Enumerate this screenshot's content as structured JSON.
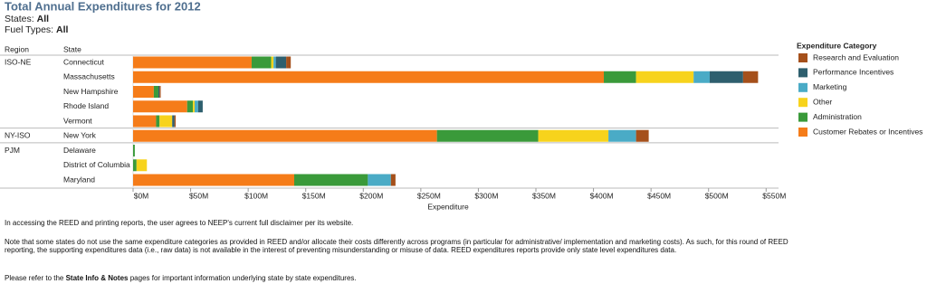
{
  "chart_data": {
    "type": "stacked-bar-horizontal",
    "title": "Total Annual Expenditures for 2012",
    "filters": [
      {
        "label": "States: ",
        "value": "All"
      },
      {
        "label": "Fuel Types: ",
        "value": "All"
      }
    ],
    "region_header": "Region",
    "state_header": "State",
    "regions": [
      "ISO-NE",
      null,
      null,
      null,
      null,
      "NY-ISO",
      "PJM",
      null,
      null
    ],
    "categories": [
      "Connecticut",
      "Massachusetts",
      "New Hampshire",
      "Rhode Island",
      "Vermont",
      "New York",
      "Delaware",
      "District of Columbia",
      "Maryland"
    ],
    "xlabel": "Expenditure",
    "xlim": [
      0,
      560
    ],
    "xticks": [
      {
        "value": 0,
        "label": "$0M"
      },
      {
        "value": 50,
        "label": "$50M"
      },
      {
        "value": 100,
        "label": "$100M"
      },
      {
        "value": 150,
        "label": "$150M"
      },
      {
        "value": 200,
        "label": "$200M"
      },
      {
        "value": 250,
        "label": "$250M"
      },
      {
        "value": 300,
        "label": "$300M"
      },
      {
        "value": 350,
        "label": "$350M"
      },
      {
        "value": 400,
        "label": "$400M"
      },
      {
        "value": 450,
        "label": "$450M"
      },
      {
        "value": 500,
        "label": "$500M"
      },
      {
        "value": 550,
        "label": "$550M"
      }
    ],
    "legend_title": "Expenditure Category",
    "series": [
      {
        "name": "Customer Rebates or Incentives",
        "color": "#f57c19",
        "values": [
          103,
          409,
          18,
          47,
          20,
          264,
          null,
          null,
          140
        ]
      },
      {
        "name": "Administration",
        "color": "#3a9a3a",
        "values": [
          17,
          28,
          4,
          5,
          3,
          88,
          1.5,
          3,
          64
        ]
      },
      {
        "name": "Other",
        "color": "#f7d31c",
        "values": [
          2,
          50,
          null,
          1.5,
          11,
          61,
          null,
          9,
          null
        ]
      },
      {
        "name": "Marketing",
        "color": "#4aabc6",
        "values": [
          2,
          14,
          null,
          3,
          null,
          24,
          null,
          null,
          20
        ]
      },
      {
        "name": "Performance Incentives",
        "color": "#2e5f6e",
        "values": [
          9,
          29,
          1,
          4,
          2,
          null,
          null,
          null,
          null
        ]
      },
      {
        "name": "Research and Evaluation",
        "color": "#a5501b",
        "values": [
          4,
          13,
          1,
          null,
          1,
          11,
          null,
          null,
          4
        ]
      }
    ]
  },
  "notes": {
    "disclaimer": "In accessing the REED and printing reports, the user agrees to NEEP's current full disclaimer per its website.",
    "caveat": "Note that some states do not use the same expenditure categories as provided in REED and/or allocate their costs differently across programs (in particular for administrative/ implementation and marketing costs).  As such, for this round of REED reporting, the supporting expenditures data (i.e., raw data) is not available in the interest of preventing misunderstanding or misuse of data.  REED expenditures reports provide only state level expenditures data.",
    "refer": [
      "Please refer to the ",
      "State Info & Notes",
      " pages for important information underlying state by state expenditures."
    ]
  }
}
